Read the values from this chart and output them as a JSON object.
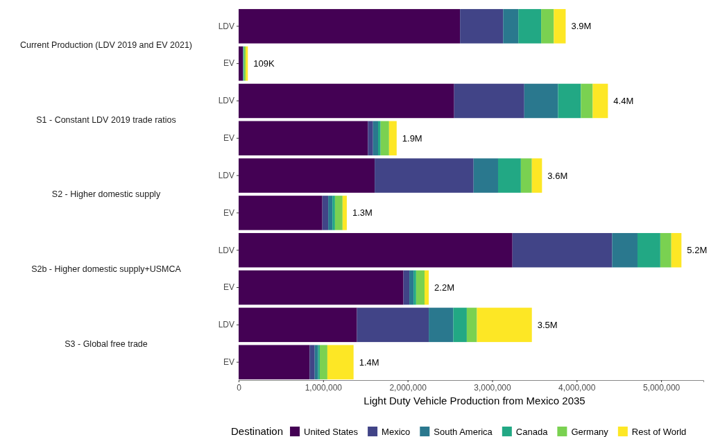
{
  "chart_data": {
    "type": "bar",
    "orientation": "horizontal",
    "stacked": true,
    "xlabel": "Light Duty Vehicle Production from Mexico 2035",
    "legend_title": "Destination",
    "legend": "bottom",
    "categories": [
      "LDV",
      "EV",
      "LDV",
      "EV",
      "LDV",
      "EV",
      "LDV",
      "EV",
      "LDV",
      "EV"
    ],
    "annotations": [
      "Current Production (LDV 2019 and EV 2021)",
      "S1 - Constant LDV 2019 trade ratios",
      "S2 - Higher domestic supply",
      "S2b - Higher domestic supply+USMCA",
      "S3 - Global free trade"
    ],
    "xlim": [
      0,
      5500000
    ],
    "xticks": [
      {
        "value": 0,
        "label": "0"
      },
      {
        "value": 1000000,
        "label": "1,000,000"
      },
      {
        "value": 2000000,
        "label": "2,000,000"
      },
      {
        "value": 3000000,
        "label": "3,000,000"
      },
      {
        "value": 4000000,
        "label": "4,000,000"
      },
      {
        "value": 5000000,
        "label": "5,000,000"
      }
    ],
    "totals": [
      "3.9M",
      "109K",
      "4.4M",
      "1.9M",
      "3.6M",
      "1.3M",
      "5.2M",
      "2.2M",
      "3.5M",
      "1.4M"
    ],
    "series": [
      {
        "name": "United States",
        "color": "#440154",
        "values": [
          2620000,
          50000,
          2550000,
          1530000,
          1610000,
          990000,
          3240000,
          1950000,
          1400000,
          840000
        ]
      },
      {
        "name": "Mexico",
        "color": "#414487",
        "values": [
          510000,
          3000,
          830000,
          60000,
          1170000,
          70000,
          1180000,
          70000,
          850000,
          60000
        ]
      },
      {
        "name": "South America",
        "color": "#2a788e",
        "values": [
          180000,
          4000,
          400000,
          60000,
          290000,
          50000,
          300000,
          50000,
          290000,
          40000
        ]
      },
      {
        "name": "Canada",
        "color": "#22a884",
        "values": [
          270000,
          6000,
          270000,
          30000,
          270000,
          30000,
          270000,
          30000,
          160000,
          20000
        ]
      },
      {
        "name": "Germany",
        "color": "#7ad151",
        "values": [
          150000,
          20000,
          140000,
          100000,
          130000,
          90000,
          130000,
          100000,
          120000,
          90000
        ]
      },
      {
        "name": "Rest of World",
        "color": "#fde725",
        "values": [
          140000,
          26000,
          180000,
          90000,
          120000,
          50000,
          120000,
          50000,
          650000,
          310000
        ]
      }
    ]
  }
}
